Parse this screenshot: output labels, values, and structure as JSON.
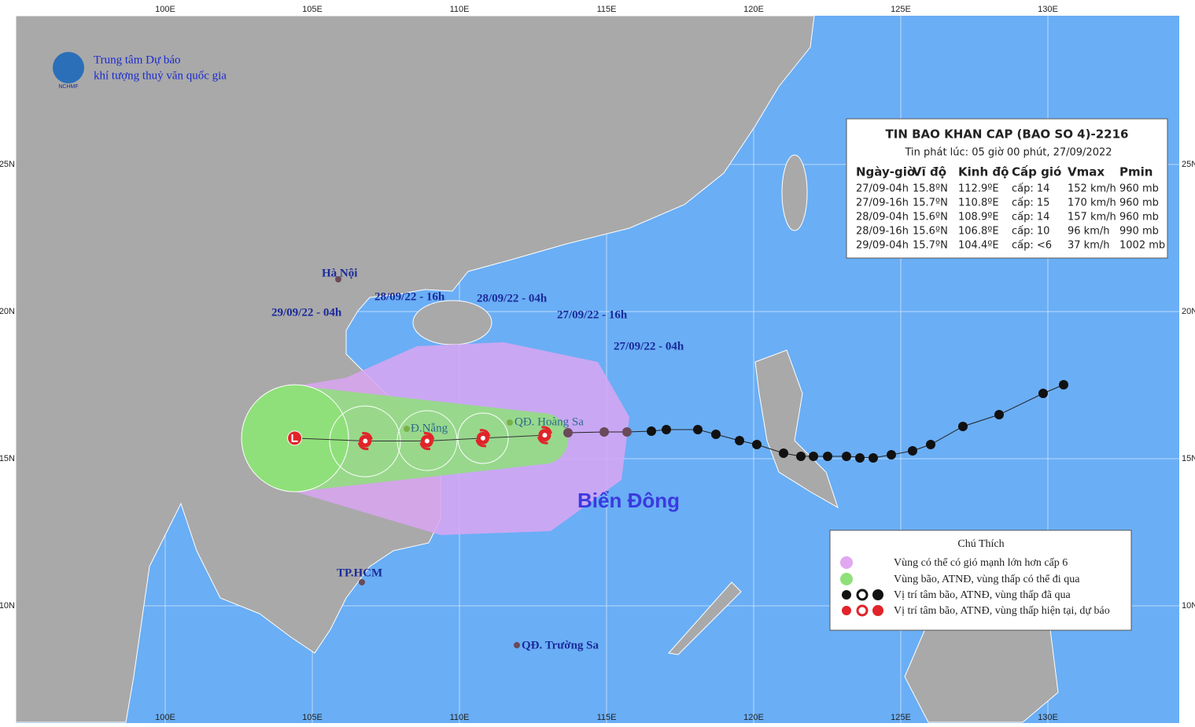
{
  "org": {
    "line1": "Trung tâm Dự báo",
    "line2": "khí tượng thuỷ văn quốc gia",
    "logo": "NCHMF"
  },
  "axes": {
    "lon": [
      "100E",
      "105E",
      "110E",
      "115E",
      "120E",
      "125E",
      "130E"
    ],
    "lat": [
      "25N",
      "20N",
      "15N",
      "10N"
    ]
  },
  "bulletin": {
    "title": "TIN BAO KHAN CAP  (BAO SO 4)-2216",
    "issued": "Tin phát lúc: 05 giờ 00 phút, 27/09/2022",
    "headers": [
      "Ngày-giờ",
      "Vĩ độ",
      "Kinh độ",
      "Cấp gió",
      "Vmax",
      "Pmin"
    ],
    "rows": [
      [
        "27/09-04h",
        "15.8ºN",
        "112.9ºE",
        "cấp: 14",
        "152 km/h",
        "960 mb"
      ],
      [
        "27/09-16h",
        "15.7ºN",
        "110.8ºE",
        "cấp: 15",
        "170 km/h",
        "960 mb"
      ],
      [
        "28/09-04h",
        "15.6ºN",
        "108.9ºE",
        "cấp: 14",
        "157 km/h",
        "960 mb"
      ],
      [
        "28/09-16h",
        "15.6ºN",
        "106.8ºE",
        "cấp: 10",
        "96 km/h",
        "990 mb"
      ],
      [
        "29/09-04h",
        "15.7ºN",
        "104.4ºE",
        "cấp: <6",
        "37 km/h",
        "1002 mb"
      ]
    ]
  },
  "places": [
    "Hà Nội",
    "Đ.Nẵng",
    "QĐ. Hoàng Sa",
    "TP.HCM",
    "QĐ. Trường Sa"
  ],
  "forecast_times": [
    "29/09/22 - 04h",
    "28/09/22 - 16h",
    "28/09/22 - 04h",
    "27/09/22 - 16h",
    "27/09/22 - 04h"
  ],
  "sea": "Biển Đông",
  "legend": {
    "title": "Chú Thích",
    "items": [
      "Vùng có thể có gió mạnh lớn hơn cấp 6",
      "Vùng bão, ATNĐ, vùng thấp có thể đi qua",
      "Vị trí tâm bão, ATNĐ, vùng thấp đã qua",
      "Vị trí tâm bão, ATNĐ, vùng thấp hiện tại, dự báo"
    ]
  }
}
